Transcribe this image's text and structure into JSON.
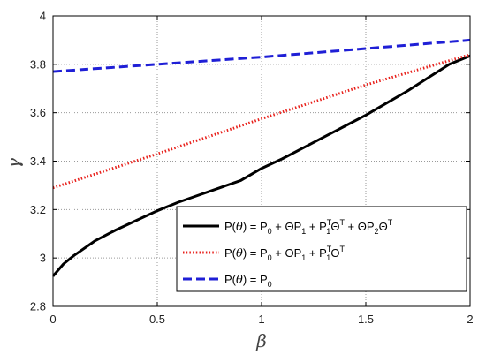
{
  "chart_data": {
    "type": "line",
    "xlabel": "β",
    "ylabel": "γ",
    "xlim": [
      0,
      2
    ],
    "ylim": [
      2.8,
      4
    ],
    "x_ticks": [
      "0",
      "0.5",
      "1",
      "1.5",
      "2"
    ],
    "y_ticks": [
      "2.8",
      "3",
      "3.2",
      "3.4",
      "3.6",
      "3.8",
      "4"
    ],
    "grid": true,
    "legend_position": "bottom-right",
    "series": [
      {
        "name": "P(θ) = P0 + ΘP1 + P1TΘT + ΘP2ΘT",
        "color": "#000000",
        "style": "solid",
        "x": [
          0,
          0.05,
          0.1,
          0.2,
          0.3,
          0.4,
          0.5,
          0.6,
          0.7,
          0.8,
          0.9,
          1.0,
          1.1,
          1.2,
          1.3,
          1.4,
          1.5,
          1.6,
          1.7,
          1.8,
          1.9,
          2.0
        ],
        "y": [
          2.925,
          2.975,
          3.01,
          3.07,
          3.115,
          3.155,
          3.195,
          3.23,
          3.26,
          3.29,
          3.32,
          3.37,
          3.41,
          3.455,
          3.5,
          3.545,
          3.59,
          3.64,
          3.69,
          3.745,
          3.8,
          3.835
        ]
      },
      {
        "name": "P(θ) = P0 + ΘP1 + P1TΘT",
        "color": "#e8211c",
        "style": "dotted",
        "x": [
          0,
          0.5,
          1.0,
          1.5,
          2.0
        ],
        "y": [
          3.29,
          3.43,
          3.575,
          3.715,
          3.84
        ]
      },
      {
        "name": "P(θ) = P0",
        "color": "#1f1fd6",
        "style": "dashed",
        "x": [
          0,
          0.5,
          1.0,
          1.5,
          2.0
        ],
        "y": [
          3.77,
          3.8,
          3.83,
          3.865,
          3.9
        ]
      }
    ]
  }
}
